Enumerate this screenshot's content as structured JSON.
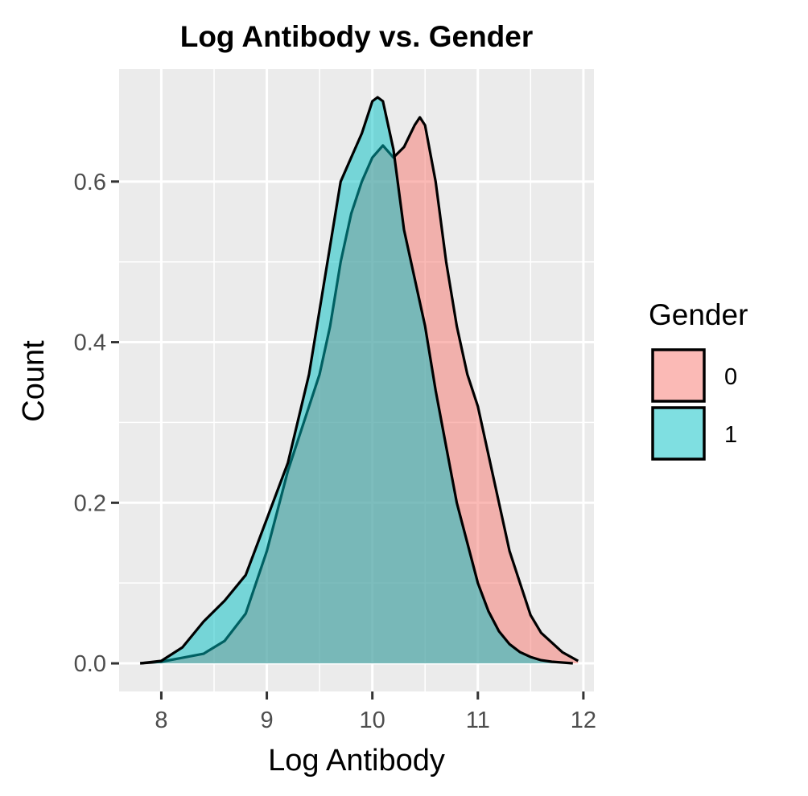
{
  "chart_data": {
    "type": "area",
    "subtype": "density",
    "title": "Log Antibody vs. Gender",
    "xlabel": "Log Antibody",
    "ylabel": "Count",
    "xlim": [
      7.6,
      12.1
    ],
    "ylim": [
      -0.035,
      0.74
    ],
    "x_ticks": [
      8,
      9,
      10,
      11,
      12
    ],
    "x_tick_labels": [
      "8",
      "9",
      "10",
      "11",
      "12"
    ],
    "y_ticks": [
      0.0,
      0.2,
      0.4,
      0.6
    ],
    "y_tick_labels": [
      "0.0",
      "0.2",
      "0.4",
      "0.6"
    ],
    "grid": true,
    "legend": {
      "title": "Gender",
      "position": "right"
    },
    "series": [
      {
        "name": "0",
        "color": "#F8766D",
        "x": [
          7.8,
          8.0,
          8.2,
          8.4,
          8.6,
          8.8,
          9.0,
          9.2,
          9.4,
          9.5,
          9.6,
          9.7,
          9.8,
          9.9,
          10.0,
          10.1,
          10.2,
          10.3,
          10.4,
          10.45,
          10.5,
          10.6,
          10.7,
          10.8,
          10.9,
          11.0,
          11.1,
          11.2,
          11.3,
          11.4,
          11.5,
          11.6,
          11.8,
          11.95
        ],
        "y": [
          0.0,
          0.002,
          0.007,
          0.012,
          0.028,
          0.062,
          0.14,
          0.24,
          0.32,
          0.36,
          0.42,
          0.5,
          0.56,
          0.6,
          0.63,
          0.645,
          0.63,
          0.643,
          0.67,
          0.68,
          0.67,
          0.6,
          0.5,
          0.42,
          0.36,
          0.32,
          0.26,
          0.2,
          0.14,
          0.1,
          0.06,
          0.038,
          0.014,
          0.003
        ]
      },
      {
        "name": "1",
        "color": "#00BFC4",
        "x": [
          7.8,
          8.0,
          8.2,
          8.4,
          8.6,
          8.8,
          9.0,
          9.2,
          9.4,
          9.5,
          9.6,
          9.7,
          9.8,
          9.9,
          10.0,
          10.05,
          10.1,
          10.2,
          10.3,
          10.4,
          10.5,
          10.6,
          10.7,
          10.8,
          10.9,
          11.0,
          11.1,
          11.2,
          11.3,
          11.4,
          11.5,
          11.6,
          11.7,
          11.8,
          11.9
        ],
        "y": [
          0.0,
          0.003,
          0.02,
          0.052,
          0.078,
          0.11,
          0.18,
          0.25,
          0.36,
          0.44,
          0.52,
          0.6,
          0.63,
          0.66,
          0.7,
          0.705,
          0.7,
          0.64,
          0.54,
          0.48,
          0.42,
          0.34,
          0.27,
          0.2,
          0.15,
          0.1,
          0.065,
          0.04,
          0.024,
          0.014,
          0.008,
          0.004,
          0.002,
          0.001,
          0.0
        ]
      }
    ]
  }
}
